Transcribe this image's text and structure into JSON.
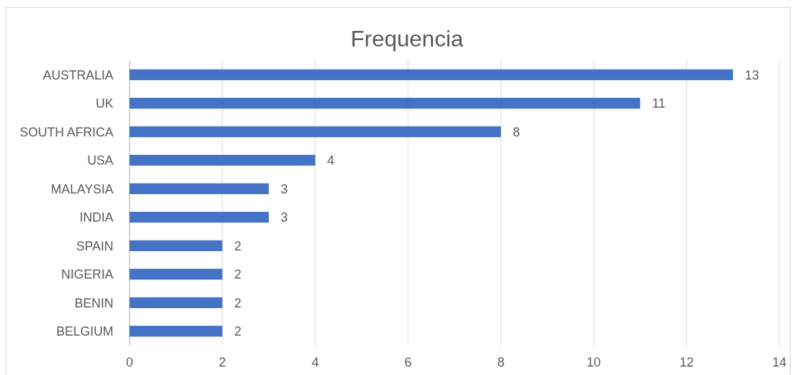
{
  "chart_data": {
    "type": "bar",
    "orientation": "horizontal",
    "title": "Frequencia",
    "categories": [
      "AUSTRALIA",
      "UK",
      "SOUTH AFRICA",
      "USA",
      "MALAYSIA",
      "INDIA",
      "SPAIN",
      "NIGERIA",
      "BENIN",
      "BELGIUM"
    ],
    "values": [
      13,
      11,
      8,
      4,
      3,
      3,
      2,
      2,
      2,
      2
    ],
    "color": "#4472c4",
    "xlim": [
      0,
      14
    ],
    "xticks": [
      0,
      2,
      4,
      6,
      8,
      10,
      12,
      14
    ],
    "grid": "x",
    "data_labels": true
  }
}
